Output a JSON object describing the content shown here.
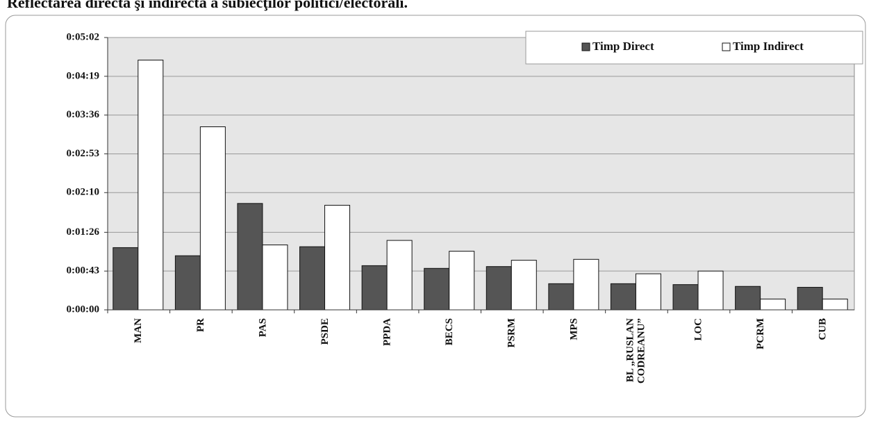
{
  "chart_data": {
    "type": "bar",
    "title": "Reflectarea directă şi indirectă a subiecţilor politici/electorali.",
    "categories": [
      "MAN",
      "PR",
      "PAS",
      "PSDE",
      "PPDA",
      "BECS",
      "PSRM",
      "MPS",
      "BL „RUSLAN\nCODREANU”",
      "LOC",
      "PCRM",
      "CUB"
    ],
    "series": [
      {
        "name": "Timp Direct",
        "color": "#555555",
        "values": [
          69,
          60,
          118,
          70,
          49,
          46,
          48,
          29,
          29,
          28,
          26,
          25
        ]
      },
      {
        "name": "Timp Indirect",
        "color": "#ffffff",
        "values": [
          277,
          203,
          72,
          116,
          77,
          65,
          55,
          56,
          40,
          43,
          12,
          12
        ]
      }
    ],
    "ylim": [
      0,
      302
    ],
    "yticks": [
      {
        "value": 0,
        "label": "0:00:00"
      },
      {
        "value": 43,
        "label": "0:00:43"
      },
      {
        "value": 86,
        "label": "0:01:26"
      },
      {
        "value": 130,
        "label": "0:02:10"
      },
      {
        "value": 173,
        "label": "0:02:53"
      },
      {
        "value": 216,
        "label": "0:03:36"
      },
      {
        "value": 259,
        "label": "0:04:19"
      },
      {
        "value": 302,
        "label": "0:05:02"
      }
    ],
    "grid": true,
    "legend": "top-right"
  }
}
